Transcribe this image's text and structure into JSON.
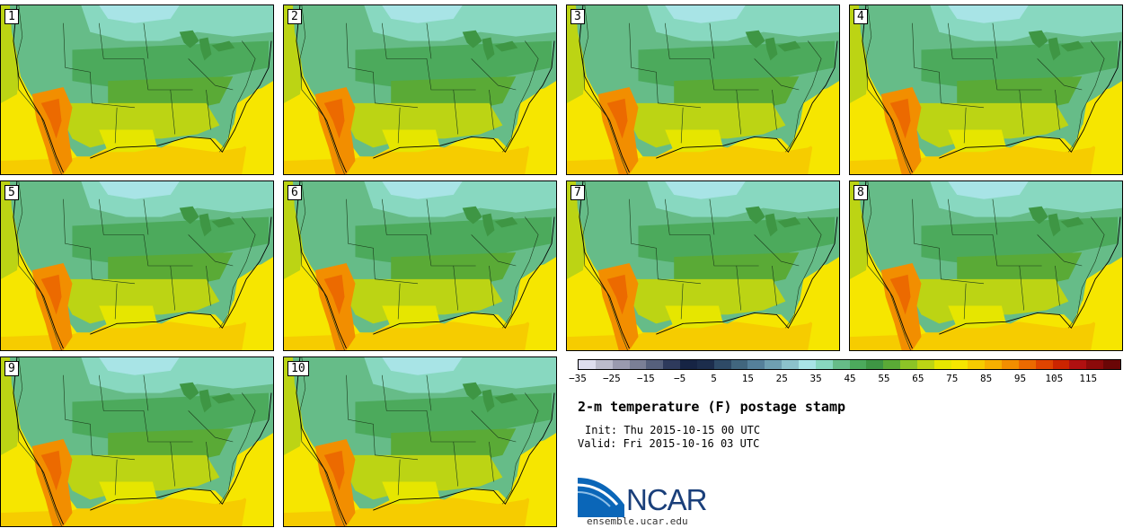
{
  "members": [
    "1",
    "2",
    "3",
    "4",
    "5",
    "6",
    "7",
    "8",
    "9",
    "10"
  ],
  "colorbar": {
    "ticks": [
      "−35",
      "−25",
      "−15",
      "−5",
      "5",
      "15",
      "25",
      "35",
      "45",
      "55",
      "65",
      "75",
      "85",
      "95",
      "105",
      "115"
    ],
    "colors": [
      "#dedeee",
      "#bcbccc",
      "#9a9aae",
      "#7a7f96",
      "#56607c",
      "#2e3a5c",
      "#162444",
      "#1c2d4c",
      "#2e4a66",
      "#41667e",
      "#55809a",
      "#6fa0b2",
      "#8cc2cc",
      "#a8e4e6",
      "#88d8c0",
      "#66bc88",
      "#4caa5c",
      "#3e9644",
      "#5aaa36",
      "#8cc426",
      "#bcd414",
      "#e6e600",
      "#f6e600",
      "#f6cc00",
      "#f6b000",
      "#f28e00",
      "#ec6a00",
      "#e04400",
      "#cc2400",
      "#b01010",
      "#8c0a0a",
      "#6a0606"
    ]
  },
  "title": "2-m temperature (F) postage stamp",
  "init": "Init: Thu 2015-10-15 00 UTC",
  "valid": "Valid: Fri 2015-10-16 03 UTC",
  "logo": {
    "name": "NCAR",
    "site": "ensemble.ucar.edu"
  }
}
